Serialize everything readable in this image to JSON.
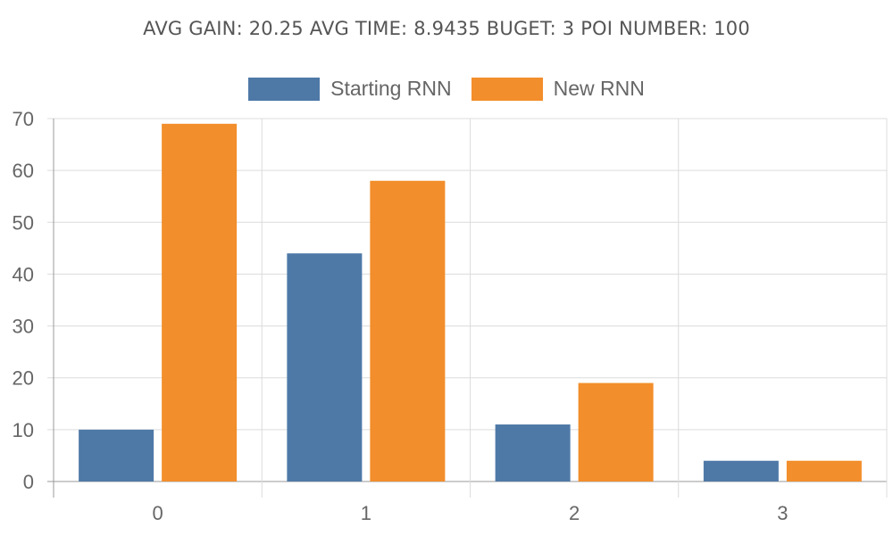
{
  "chart_data": {
    "type": "bar",
    "title": "AVG GAIN: 20.25 AVG TIME: 8.9435 BUGET: 3 POI NUMBER: 100",
    "categories": [
      "0",
      "1",
      "2",
      "3"
    ],
    "series": [
      {
        "name": "Starting RNN",
        "values": [
          10,
          44,
          11,
          4
        ],
        "color": "#4e79a7"
      },
      {
        "name": "New RNN",
        "values": [
          69,
          58,
          19,
          4
        ],
        "color": "#f28e2b"
      }
    ],
    "xlabel": "",
    "ylabel": "",
    "ylim": [
      0,
      70
    ],
    "yticks": [
      0,
      10,
      20,
      30,
      40,
      50,
      60,
      70
    ],
    "grid": true,
    "legend_position": "top-center"
  }
}
